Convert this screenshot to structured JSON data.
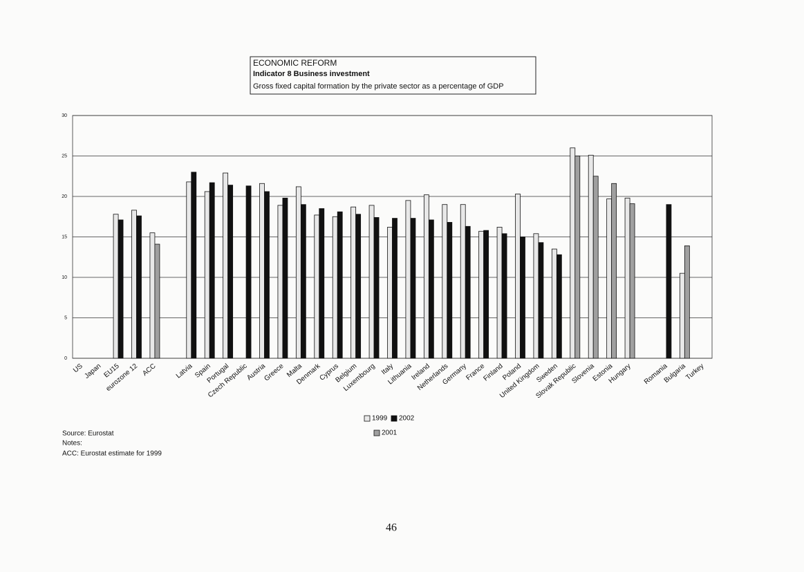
{
  "chart_data": {
    "type": "bar",
    "title": "ECONOMIC REFORM",
    "subtitle": "Indicator 8  Business investment",
    "description": "Gross fixed capital formation by the private sector as a percentage of GDP",
    "categories": [
      "US",
      "Japan",
      "EU15",
      "eurozone 12",
      "ACC",
      null,
      "Latvia",
      "Spain",
      "Portugal",
      "Czech Republic",
      "Austria",
      "Greece",
      "Malta",
      "Denmark",
      "Cyprus",
      "Belgium",
      "Luxembourg",
      "Italy",
      "Lithuania",
      "Ireland",
      "Netherlands",
      "Germany",
      "France",
      "Finland",
      "Poland",
      "United Kingdom",
      "Sweden",
      "Slovak Republic",
      "Slovenia",
      "Estonia",
      "Hungary",
      null,
      "Romania",
      "Bulgaria",
      "Turkey"
    ],
    "series": [
      {
        "name": "1999",
        "color": "#e8e8e8",
        "values": [
          null,
          null,
          17.8,
          18.3,
          15.5,
          null,
          21.8,
          20.6,
          22.9,
          null,
          21.6,
          18.9,
          21.2,
          17.7,
          17.5,
          18.7,
          18.9,
          16.2,
          19.5,
          20.2,
          19.0,
          19.0,
          15.7,
          16.2,
          20.3,
          15.4,
          13.5,
          26.0,
          25.1,
          19.7,
          19.8,
          null,
          null,
          10.5,
          null
        ]
      },
      {
        "name": "2002",
        "color": "#111111",
        "values": [
          null,
          null,
          17.1,
          17.6,
          null,
          null,
          23.0,
          21.7,
          21.4,
          21.3,
          20.6,
          19.8,
          19.0,
          18.5,
          18.1,
          17.8,
          17.4,
          17.3,
          17.3,
          17.1,
          16.8,
          16.3,
          15.8,
          15.4,
          15.0,
          14.3,
          12.8,
          null,
          null,
          null,
          null,
          null,
          19.0,
          null,
          null
        ]
      },
      {
        "name": "2001",
        "color": "#a0a0a0",
        "values": [
          null,
          null,
          null,
          null,
          14.1,
          null,
          null,
          null,
          null,
          null,
          null,
          null,
          null,
          null,
          null,
          null,
          null,
          null,
          null,
          null,
          null,
          null,
          null,
          null,
          null,
          null,
          null,
          25.0,
          22.5,
          21.6,
          19.1,
          null,
          null,
          13.9,
          null
        ]
      }
    ],
    "ylim": [
      0,
      30
    ],
    "yticks": [
      0,
      5,
      10,
      15,
      20,
      25,
      30
    ],
    "grid": true,
    "notes": [
      "Source: Eurostat",
      "Notes:",
      "ACC: Eurostat estimate  for 1999"
    ],
    "page_number": "46"
  }
}
